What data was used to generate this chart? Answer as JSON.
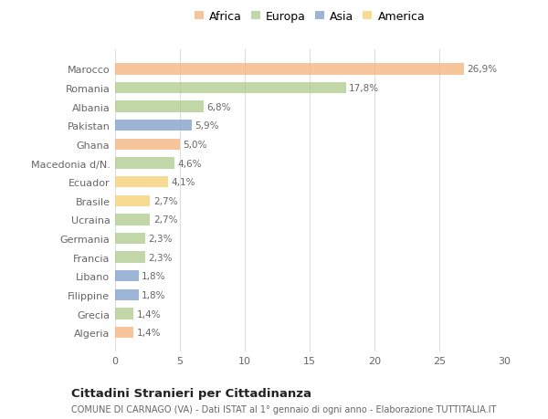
{
  "categories": [
    "Algeria",
    "Grecia",
    "Filippine",
    "Libano",
    "Francia",
    "Germania",
    "Ucraina",
    "Brasile",
    "Ecuador",
    "Macedonia d/N.",
    "Ghana",
    "Pakistan",
    "Albania",
    "Romania",
    "Marocco"
  ],
  "values": [
    1.4,
    1.4,
    1.8,
    1.8,
    2.3,
    2.3,
    2.7,
    2.7,
    4.1,
    4.6,
    5.0,
    5.9,
    6.8,
    17.8,
    26.9
  ],
  "continents": [
    "Africa",
    "Europa",
    "Asia",
    "Asia",
    "Europa",
    "Europa",
    "Europa",
    "America",
    "America",
    "Europa",
    "Africa",
    "Asia",
    "Europa",
    "Europa",
    "Africa"
  ],
  "colors": {
    "Africa": "#F5B27A",
    "Europa": "#AECA8A",
    "Asia": "#7B9DC9",
    "America": "#F5D06E"
  },
  "legend_order": [
    "Africa",
    "Europa",
    "Asia",
    "America"
  ],
  "title": "Cittadini Stranieri per Cittadinanza",
  "subtitle": "COMUNE DI CARNAGO (VA) - Dati ISTAT al 1° gennaio di ogni anno - Elaborazione TUTTITALIA.IT",
  "xlim": [
    0,
    30
  ],
  "xticks": [
    0,
    5,
    10,
    15,
    20,
    25,
    30
  ],
  "bg_color": "#ffffff",
  "grid_color": "#dddddd",
  "bar_alpha": 0.75,
  "bar_height": 0.6
}
